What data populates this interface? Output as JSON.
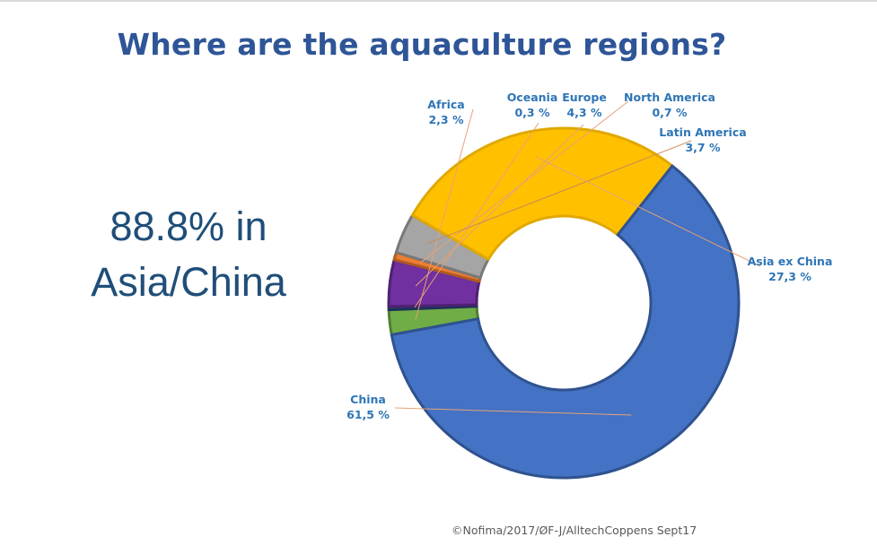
{
  "slide": {
    "title": "Where are the aquaculture regions?",
    "callout_line1": "88.8% in",
    "callout_line2": "Asia/China",
    "credit": "©Nofima/2017/ØF-J/AlltechCoppens Sept17"
  },
  "chart_data": {
    "type": "pie",
    "title": "",
    "donut": true,
    "slices": [
      {
        "name": "Africa",
        "value": 2.3,
        "label": "2,3 %",
        "color": "#70ad47",
        "edge": "#507e32"
      },
      {
        "name": "Oceania",
        "value": 0.3,
        "label": "0,3 %",
        "color": "#264478",
        "edge": "#1c3358"
      },
      {
        "name": "Europe",
        "value": 4.3,
        "label": "4,3 %",
        "color": "#7030a0",
        "edge": "#4f2172"
      },
      {
        "name": "North America",
        "value": 0.7,
        "label": "0,7 %",
        "color": "#ed7d31",
        "edge": "#ae5a21"
      },
      {
        "name": "Latin America",
        "value": 3.7,
        "label": "3,7 %",
        "color": "#a5a5a5",
        "edge": "#787878"
      },
      {
        "name": "Asia ex China",
        "value": 27.3,
        "label": "27,3 %",
        "color": "#ffc000",
        "edge": "#e0a800"
      },
      {
        "name": "China",
        "value": 61.5,
        "label": "61,5 %",
        "color": "#4472c4",
        "edge": "#2f528f"
      }
    ],
    "label_color": "#2e75b6"
  }
}
